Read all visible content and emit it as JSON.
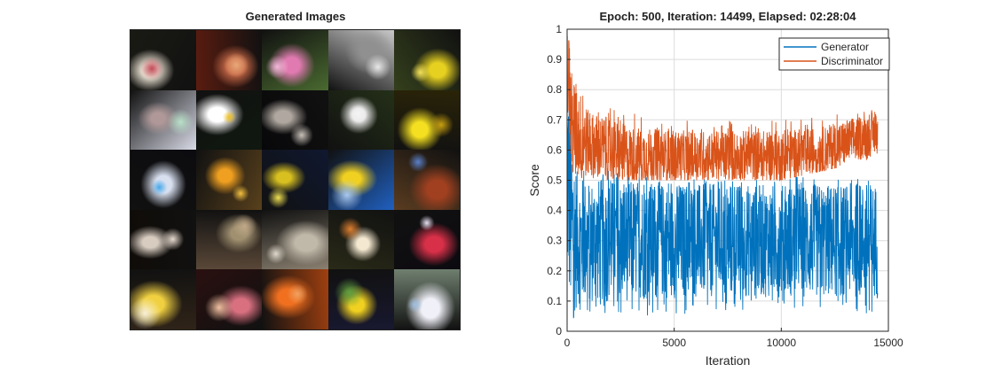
{
  "figure": {
    "left_panel": {
      "title": "Generated Images",
      "tiles": [
        {
          "bg": "#1a1a14",
          "accent": "#e8e0d2",
          "accent2": "#c44a58"
        },
        {
          "bg": "#5a1c10",
          "accent": "#c86a48",
          "accent2": "#e8a878"
        },
        {
          "bg": "#4a6a30",
          "accent": "#e07ab0",
          "accent2": "#f2b8d8"
        },
        {
          "bg": "#c8c8c8",
          "accent": "#909090",
          "accent2": "#e8e8e8"
        },
        {
          "bg": "#34401c",
          "accent": "#e6d020",
          "accent2": "#f2e05a"
        },
        {
          "bg": "#d8dae6",
          "accent": "#b09898",
          "accent2": "#b8e0c8"
        },
        {
          "bg": "#101810",
          "accent": "#ffffff",
          "accent2": "#f0c020"
        },
        {
          "bg": "#08080a",
          "accent": "#b0a8a0",
          "accent2": "#c8c0b8"
        },
        {
          "bg": "#243018",
          "accent": "#e8e8e8",
          "accent2": "#f4f4f4"
        },
        {
          "bg": "#2a2408",
          "accent": "#f4e020",
          "accent2": "#c8a010"
        },
        {
          "bg": "#0c0c10",
          "accent": "#d8e0f0",
          "accent2": "#48a8e8"
        },
        {
          "bg": "#58401c",
          "accent": "#f0a020",
          "accent2": "#f4c040"
        },
        {
          "bg": "#101830",
          "accent": "#d8c020",
          "accent2": "#f0e050"
        },
        {
          "bg": "#2060c0",
          "accent": "#f0d020",
          "accent2": "#a8c8f0"
        },
        {
          "bg": "#5a3c20",
          "accent": "#a04020",
          "accent2": "#5a80c8"
        },
        {
          "bg": "#100c08",
          "accent": "#d8ccc0",
          "accent2": "#e8dcd0"
        },
        {
          "bg": "#5a4838",
          "accent": "#a09070",
          "accent2": "#c0a888"
        },
        {
          "bg": "#8a8070",
          "accent": "#c0b8a8",
          "accent2": "#e0d8cc"
        },
        {
          "bg": "#2a2a18",
          "accent": "#f4e8d0",
          "accent2": "#e08030"
        },
        {
          "bg": "#0c0a10",
          "accent": "#d83048",
          "accent2": "#e8e0f0"
        },
        {
          "bg": "#302418",
          "accent": "#f0d040",
          "accent2": "#f8f0d8"
        },
        {
          "bg": "#2a1010",
          "accent": "#d87080",
          "accent2": "#f0c0a0"
        },
        {
          "bg": "#a04010",
          "accent": "#f07020",
          "accent2": "#f0a060"
        },
        {
          "bg": "#181830",
          "accent": "#f0d020",
          "accent2": "#60a040"
        },
        {
          "bg": "#708070",
          "accent": "#f0f0f8",
          "accent2": "#a0c0e0"
        }
      ]
    },
    "right_panel": {
      "title": "Epoch: 500, Iteration: 14499, Elapsed: 02:28:04",
      "chart_data": {
        "type": "line",
        "title": "Epoch: 500, Iteration: 14499, Elapsed: 02:28:04",
        "xlabel": "Iteration",
        "ylabel": "Score",
        "xlim": [
          0,
          15000
        ],
        "ylim": [
          0,
          1
        ],
        "xticks": [
          0,
          5000,
          10000,
          15000
        ],
        "yticks": [
          0,
          0.1,
          0.2,
          0.3,
          0.4,
          0.5,
          0.6,
          0.7,
          0.8,
          0.9,
          1
        ],
        "grid": true,
        "legend_location": "top-right",
        "series": [
          {
            "name": "Generator",
            "color": "#0072BD",
            "x_end": 14499,
            "approx_mean": [
              [
                0,
                0.55
              ],
              [
                200,
                0.35
              ],
              [
                500,
                0.3
              ],
              [
                2000,
                0.3
              ],
              [
                8000,
                0.3
              ],
              [
                11000,
                0.3
              ],
              [
                14499,
                0.3
              ]
            ],
            "approx_envelope": [
              [
                0,
                0.02,
                0.97
              ],
              [
                500,
                0.05,
                0.55
              ],
              [
                5000,
                0.05,
                0.5
              ],
              [
                10000,
                0.08,
                0.52
              ],
              [
                14499,
                0.05,
                0.5
              ]
            ]
          },
          {
            "name": "Discriminator",
            "color": "#D95319",
            "x_end": 14499,
            "approx_mean": [
              [
                0,
                0.95
              ],
              [
                200,
                0.68
              ],
              [
                1000,
                0.62
              ],
              [
                3000,
                0.58
              ],
              [
                7000,
                0.58
              ],
              [
                10000,
                0.58
              ],
              [
                12000,
                0.6
              ],
              [
                14499,
                0.66
              ]
            ],
            "approx_envelope": [
              [
                0,
                0.5,
                0.98
              ],
              [
                1000,
                0.5,
                0.76
              ],
              [
                5000,
                0.5,
                0.7
              ],
              [
                10000,
                0.5,
                0.7
              ],
              [
                14499,
                0.57,
                0.74
              ]
            ]
          }
        ]
      }
    }
  }
}
